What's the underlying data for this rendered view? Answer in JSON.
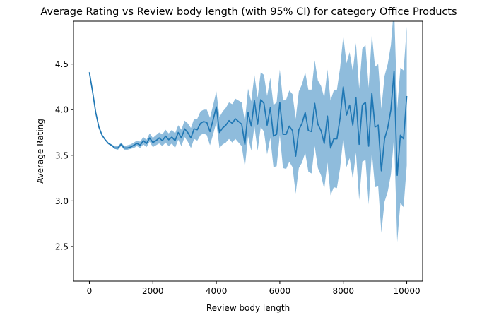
{
  "chart_data": {
    "type": "line",
    "title": "Average Rating vs Review body length (with 95% CI) for category Office Products",
    "xlabel": "Review body length",
    "ylabel": "Average Rating",
    "xlim": [
      -500,
      10500
    ],
    "ylim": [
      2.12,
      4.97
    ],
    "x_ticks": [
      0,
      2000,
      4000,
      6000,
      8000,
      10000
    ],
    "y_ticks": [
      2.5,
      3.0,
      3.5,
      4.0,
      4.5
    ],
    "grid": false,
    "legend": "none",
    "series": [
      {
        "color": "#1f77b4",
        "band_color": "#8fbcdc",
        "points": [
          [
            0,
            4.41,
            4.4,
            4.42
          ],
          [
            100,
            4.2,
            4.19,
            4.21
          ],
          [
            200,
            3.97,
            3.96,
            3.98
          ],
          [
            300,
            3.81,
            3.8,
            3.82
          ],
          [
            400,
            3.72,
            3.71,
            3.73
          ],
          [
            500,
            3.67,
            3.66,
            3.68
          ],
          [
            600,
            3.63,
            3.62,
            3.64
          ],
          [
            700,
            3.61,
            3.6,
            3.62
          ],
          [
            800,
            3.58,
            3.57,
            3.6
          ],
          [
            900,
            3.58,
            3.56,
            3.6
          ],
          [
            1000,
            3.62,
            3.6,
            3.64
          ],
          [
            1100,
            3.58,
            3.56,
            3.6
          ],
          [
            1200,
            3.58,
            3.56,
            3.61
          ],
          [
            1300,
            3.59,
            3.57,
            3.62
          ],
          [
            1400,
            3.61,
            3.58,
            3.64
          ],
          [
            1500,
            3.63,
            3.6,
            3.66
          ],
          [
            1600,
            3.61,
            3.58,
            3.65
          ],
          [
            1700,
            3.66,
            3.62,
            3.7
          ],
          [
            1800,
            3.63,
            3.59,
            3.67
          ],
          [
            1900,
            3.69,
            3.65,
            3.74
          ],
          [
            2000,
            3.64,
            3.59,
            3.69
          ],
          [
            2100,
            3.66,
            3.61,
            3.72
          ],
          [
            2200,
            3.69,
            3.63,
            3.75
          ],
          [
            2300,
            3.66,
            3.6,
            3.73
          ],
          [
            2400,
            3.71,
            3.64,
            3.78
          ],
          [
            2500,
            3.67,
            3.6,
            3.74
          ],
          [
            2600,
            3.7,
            3.63,
            3.78
          ],
          [
            2700,
            3.66,
            3.58,
            3.74
          ],
          [
            2800,
            3.75,
            3.67,
            3.83
          ],
          [
            2900,
            3.69,
            3.6,
            3.78
          ],
          [
            3000,
            3.79,
            3.7,
            3.88
          ],
          [
            3100,
            3.75,
            3.65,
            3.85
          ],
          [
            3200,
            3.69,
            3.58,
            3.8
          ],
          [
            3300,
            3.79,
            3.68,
            3.9
          ],
          [
            3400,
            3.78,
            3.66,
            3.9
          ],
          [
            3500,
            3.85,
            3.72,
            3.98
          ],
          [
            3600,
            3.87,
            3.74,
            4.0
          ],
          [
            3700,
            3.86,
            3.72,
            4.0
          ],
          [
            3800,
            3.76,
            3.61,
            3.91
          ],
          [
            3900,
            3.89,
            3.73,
            4.05
          ],
          [
            4000,
            4.03,
            3.86,
            4.2
          ],
          [
            4100,
            3.75,
            3.58,
            3.92
          ],
          [
            4200,
            3.8,
            3.62,
            3.98
          ],
          [
            4300,
            3.83,
            3.64,
            4.02
          ],
          [
            4400,
            3.88,
            3.68,
            4.08
          ],
          [
            4500,
            3.85,
            3.64,
            4.06
          ],
          [
            4600,
            3.9,
            3.68,
            4.12
          ],
          [
            4700,
            3.87,
            3.64,
            4.1
          ],
          [
            4800,
            3.84,
            3.6,
            4.08
          ],
          [
            4900,
            3.62,
            3.37,
            3.87
          ],
          [
            5000,
            3.97,
            3.71,
            4.23
          ],
          [
            5100,
            3.82,
            3.55,
            4.09
          ],
          [
            5200,
            4.1,
            3.82,
            4.38
          ],
          [
            5300,
            3.84,
            3.55,
            4.13
          ],
          [
            5400,
            4.11,
            3.81,
            4.41
          ],
          [
            5500,
            4.07,
            3.76,
            4.38
          ],
          [
            5600,
            3.83,
            3.51,
            4.15
          ],
          [
            5700,
            4.02,
            3.69,
            4.35
          ],
          [
            5800,
            3.71,
            3.37,
            4.05
          ],
          [
            5900,
            3.73,
            3.38,
            4.08
          ],
          [
            6000,
            4.08,
            3.72,
            4.44
          ],
          [
            6100,
            3.73,
            3.36,
            4.1
          ],
          [
            6200,
            3.73,
            3.35,
            4.11
          ],
          [
            6300,
            3.82,
            3.43,
            4.21
          ],
          [
            6400,
            3.77,
            3.37,
            4.17
          ],
          [
            6500,
            3.49,
            3.08,
            3.9
          ],
          [
            6600,
            3.78,
            3.36,
            4.2
          ],
          [
            6700,
            3.85,
            3.42,
            4.28
          ],
          [
            6800,
            3.97,
            3.53,
            4.41
          ],
          [
            6900,
            3.77,
            3.32,
            4.22
          ],
          [
            7000,
            3.76,
            3.3,
            4.22
          ],
          [
            7100,
            4.07,
            3.6,
            4.54
          ],
          [
            7200,
            3.84,
            3.36,
            4.32
          ],
          [
            7300,
            3.77,
            3.28,
            4.26
          ],
          [
            7400,
            3.63,
            3.13,
            4.13
          ],
          [
            7500,
            3.93,
            3.42,
            4.44
          ],
          [
            7600,
            3.58,
            3.06,
            4.1
          ],
          [
            7700,
            3.68,
            3.15,
            4.21
          ],
          [
            7800,
            3.68,
            3.14,
            4.22
          ],
          [
            7900,
            3.91,
            3.36,
            4.46
          ],
          [
            8000,
            4.25,
            3.69,
            4.81
          ],
          [
            8100,
            3.94,
            3.37,
            4.51
          ],
          [
            8200,
            4.05,
            3.47,
            4.63
          ],
          [
            8300,
            3.83,
            3.24,
            4.42
          ],
          [
            8400,
            4.13,
            3.53,
            4.73
          ],
          [
            8500,
            3.62,
            3.01,
            4.23
          ],
          [
            8600,
            4.05,
            3.43,
            4.67
          ],
          [
            8700,
            4.08,
            3.45,
            4.71
          ],
          [
            8800,
            3.6,
            2.96,
            4.24
          ],
          [
            8900,
            4.18,
            3.53,
            4.83
          ],
          [
            9000,
            3.81,
            3.15,
            4.47
          ],
          [
            9100,
            3.83,
            3.16,
            4.5
          ],
          [
            9200,
            3.33,
            2.65,
            4.01
          ],
          [
            9300,
            3.68,
            2.99,
            4.37
          ],
          [
            9400,
            3.8,
            3.1,
            4.5
          ],
          [
            9500,
            4.0,
            3.29,
            4.71
          ],
          [
            9600,
            4.42,
            3.7,
            5.14
          ],
          [
            9700,
            3.28,
            2.55,
            4.01
          ],
          [
            9800,
            3.72,
            2.98,
            4.46
          ],
          [
            9900,
            3.68,
            2.93,
            4.43
          ],
          [
            10000,
            4.15,
            3.39,
            4.91
          ]
        ]
      }
    ]
  }
}
